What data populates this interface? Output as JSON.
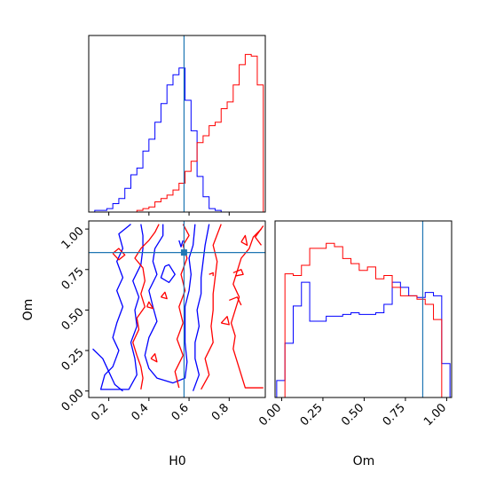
{
  "chart_data": {
    "type": "corner",
    "parameters": [
      "H0",
      "Om"
    ],
    "truths": {
      "H0": 0.575,
      "Om": 0.855
    },
    "colors": {
      "blue": "#0000ff",
      "red": "#ff0000",
      "truth": "#1f77b4"
    },
    "xlabels": {
      "H0": "H0",
      "Om": "Om"
    },
    "ylabel": "Om",
    "ticks": {
      "H0_top": [
        "0.2",
        "0.4",
        "0.6",
        "0.8"
      ],
      "H0": [
        "0.2",
        "0.4",
        "0.6",
        "0.8"
      ],
      "Om_y": [
        "0.00",
        "0.25",
        "0.50",
        "0.75",
        "1.00"
      ],
      "Om_x": [
        "0.00",
        "0.25",
        "0.50",
        "0.75",
        "1.00"
      ]
    },
    "panels": [
      {
        "name": "H0 marginal histogram",
        "type": "histogram",
        "xlim": [
          0.1,
          0.98
        ],
        "bin_edges": [
          0.13,
          0.16,
          0.19,
          0.22,
          0.25,
          0.28,
          0.31,
          0.34,
          0.37,
          0.4,
          0.43,
          0.46,
          0.49,
          0.52,
          0.55,
          0.58,
          0.61,
          0.64,
          0.67,
          0.7,
          0.73,
          0.76,
          0.79,
          0.82,
          0.85,
          0.88,
          0.91,
          0.94,
          0.97
        ],
        "series": [
          {
            "color": "blue",
            "values": [
              0.01,
              0.01,
              0.02,
              0.05,
              0.08,
              0.14,
              0.22,
              0.26,
              0.36,
              0.43,
              0.53,
              0.64,
              0.75,
              0.81,
              0.85,
              0.66,
              0.48,
              0.21,
              0.09,
              0.02,
              0.01,
              0,
              0,
              0,
              0,
              0,
              0,
              0
            ]
          },
          {
            "color": "red",
            "values": [
              0,
              0,
              0,
              0,
              0,
              0,
              0,
              0.01,
              0.02,
              0.03,
              0.06,
              0.08,
              0.1,
              0.13,
              0.17,
              0.24,
              0.3,
              0.41,
              0.45,
              0.51,
              0.53,
              0.61,
              0.65,
              0.75,
              0.87,
              0.93,
              0.92,
              0.75
            ]
          }
        ]
      },
      {
        "name": "Om marginal histogram",
        "type": "histogram",
        "xlim": [
          -0.04,
          1.03
        ],
        "bin_edges": [
          -0.03,
          0.02,
          0.07,
          0.12,
          0.17,
          0.22,
          0.27,
          0.32,
          0.37,
          0.42,
          0.47,
          0.52,
          0.57,
          0.62,
          0.67,
          0.72,
          0.77,
          0.82,
          0.87,
          0.92,
          0.97,
          1.02
        ],
        "series": [
          {
            "color": "blue",
            "values": [
              0.1,
              0.32,
              0.54,
              0.68,
              0.45,
              0.45,
              0.48,
              0.48,
              0.49,
              0.5,
              0.49,
              0.49,
              0.5,
              0.55,
              0.68,
              0.65,
              0.6,
              0.59,
              0.62,
              0.6,
              0.2
            ]
          },
          {
            "color": "red",
            "values": [
              0,
              0.73,
              0.72,
              0.78,
              0.88,
              0.88,
              0.91,
              0.89,
              0.82,
              0.79,
              0.75,
              0.77,
              0.7,
              0.72,
              0.65,
              0.6,
              0.6,
              0.58,
              0.55,
              0.46,
              0
            ]
          }
        ]
      },
      {
        "name": "H0 vs Om 2D contours",
        "type": "contour",
        "xlim": [
          0.1,
          0.98
        ],
        "ylim": [
          -0.04,
          1.05
        ],
        "contours": [
          {
            "color": "blue",
            "points": [
              [
                0.31,
                1.03
              ],
              [
                0.25,
                0.97
              ],
              [
                0.27,
                0.88
              ],
              [
                0.24,
                0.8
              ],
              [
                0.27,
                0.7
              ],
              [
                0.24,
                0.62
              ],
              [
                0.27,
                0.52
              ],
              [
                0.24,
                0.42
              ],
              [
                0.22,
                0.33
              ],
              [
                0.25,
                0.25
              ],
              [
                0.22,
                0.15
              ],
              [
                0.18,
                0.1
              ],
              [
                0.16,
                0.01
              ],
              [
                0.3,
                0.01
              ],
              [
                0.34,
                0.1
              ],
              [
                0.33,
                0.2
              ],
              [
                0.31,
                0.3
              ],
              [
                0.34,
                0.4
              ],
              [
                0.33,
                0.5
              ],
              [
                0.35,
                0.58
              ],
              [
                0.32,
                0.68
              ],
              [
                0.36,
                0.78
              ],
              [
                0.37,
                0.88
              ],
              [
                0.37,
                0.96
              ],
              [
                0.36,
                1.03
              ]
            ]
          },
          {
            "color": "blue",
            "points": [
              [
                0.12,
                0.26
              ],
              [
                0.17,
                0.2
              ],
              [
                0.2,
                0.12
              ],
              [
                0.23,
                0.04
              ],
              [
                0.27,
                0
              ]
            ]
          },
          {
            "color": "blue",
            "points": [
              [
                0.47,
                1.03
              ],
              [
                0.47,
                0.96
              ],
              [
                0.43,
                0.88
              ],
              [
                0.42,
                0.8
              ],
              [
                0.44,
                0.72
              ],
              [
                0.4,
                0.62
              ],
              [
                0.42,
                0.52
              ],
              [
                0.44,
                0.43
              ],
              [
                0.4,
                0.33
              ],
              [
                0.38,
                0.22
              ],
              [
                0.4,
                0.14
              ],
              [
                0.44,
                0.08
              ],
              [
                0.52,
                0.05
              ],
              [
                0.58,
                0.08
              ],
              [
                0.59,
                0.18
              ],
              [
                0.58,
                0.3
              ],
              [
                0.58,
                0.42
              ],
              [
                0.58,
                0.52
              ],
              [
                0.6,
                0.62
              ],
              [
                0.61,
                0.72
              ],
              [
                0.6,
                0.82
              ],
              [
                0.62,
                0.9
              ],
              [
                0.63,
                1.03
              ]
            ]
          },
          {
            "color": "blue",
            "points": [
              [
                0.62,
                0
              ],
              [
                0.65,
                0.1
              ],
              [
                0.63,
                0.2
              ],
              [
                0.63,
                0.3
              ],
              [
                0.65,
                0.4
              ],
              [
                0.64,
                0.5
              ],
              [
                0.66,
                0.6
              ],
              [
                0.66,
                0.7
              ],
              [
                0.67,
                0.8
              ],
              [
                0.68,
                0.9
              ],
              [
                0.7,
                1.03
              ]
            ]
          },
          {
            "color": "blue",
            "points": [
              [
                0.48,
                0.77
              ],
              [
                0.46,
                0.7
              ],
              [
                0.5,
                0.67
              ],
              [
                0.53,
                0.72
              ],
              [
                0.5,
                0.78
              ],
              [
                0.48,
                0.77
              ]
            ]
          },
          {
            "color": "blue",
            "points": [
              [
                0.55,
                0.93
              ],
              [
                0.56,
                0.89
              ],
              [
                0.57,
                0.93
              ]
            ]
          },
          {
            "color": "red",
            "points": [
              [
                0.45,
                1.03
              ],
              [
                0.43,
                0.98
              ],
              [
                0.4,
                0.93
              ],
              [
                0.36,
                0.88
              ],
              [
                0.33,
                0.82
              ],
              [
                0.37,
                0.76
              ],
              [
                0.38,
                0.68
              ],
              [
                0.36,
                0.6
              ],
              [
                0.38,
                0.52
              ],
              [
                0.34,
                0.45
              ],
              [
                0.35,
                0.38
              ],
              [
                0.32,
                0.3
              ],
              [
                0.34,
                0.22
              ],
              [
                0.36,
                0.15
              ],
              [
                0.37,
                0.08
              ],
              [
                0.36,
                0.01
              ]
            ]
          },
          {
            "color": "red",
            "points": [
              [
                0.57,
                1.03
              ],
              [
                0.6,
                0.96
              ],
              [
                0.57,
                0.9
              ],
              [
                0.59,
                0.82
              ],
              [
                0.56,
                0.72
              ],
              [
                0.58,
                0.62
              ],
              [
                0.55,
                0.52
              ],
              [
                0.57,
                0.42
              ],
              [
                0.54,
                0.32
              ],
              [
                0.57,
                0.22
              ],
              [
                0.53,
                0.12
              ],
              [
                0.55,
                0.02
              ]
            ]
          },
          {
            "color": "red",
            "points": [
              [
                0.66,
                0.01
              ],
              [
                0.7,
                0.1
              ],
              [
                0.68,
                0.2
              ],
              [
                0.72,
                0.3
              ],
              [
                0.71,
                0.4
              ],
              [
                0.72,
                0.5
              ],
              [
                0.72,
                0.6
              ],
              [
                0.73,
                0.7
              ],
              [
                0.74,
                0.8
              ],
              [
                0.72,
                0.9
              ],
              [
                0.76,
                1.03
              ]
            ]
          },
          {
            "color": "red",
            "points": [
              [
                0.96,
                1.0
              ],
              [
                0.92,
                0.95
              ],
              [
                0.9,
                0.88
              ],
              [
                0.86,
                0.82
              ],
              [
                0.84,
                0.74
              ],
              [
                0.82,
                0.66
              ],
              [
                0.85,
                0.58
              ],
              [
                0.83,
                0.5
              ],
              [
                0.81,
                0.42
              ],
              [
                0.83,
                0.34
              ],
              [
                0.82,
                0.26
              ],
              [
                0.84,
                0.18
              ],
              [
                0.86,
                0.1
              ],
              [
                0.88,
                0.02
              ],
              [
                0.97,
                0.02
              ]
            ]
          },
          {
            "color": "red",
            "points": [
              [
                0.96,
                0.9
              ],
              [
                0.93,
                0.95
              ],
              [
                0.97,
                1.02
              ]
            ]
          },
          {
            "color": "red",
            "points": [
              [
                0.86,
                0.92
              ],
              [
                0.88,
                0.96
              ],
              [
                0.89,
                0.9
              ],
              [
                0.86,
                0.92
              ]
            ]
          },
          {
            "color": "red",
            "points": [
              [
                0.82,
                0.73
              ],
              [
                0.86,
                0.75
              ],
              [
                0.87,
                0.72
              ],
              [
                0.83,
                0.71
              ]
            ]
          },
          {
            "color": "red",
            "points": [
              [
                0.8,
                0.56
              ],
              [
                0.84,
                0.58
              ],
              [
                0.86,
                0.53
              ]
            ]
          },
          {
            "color": "red",
            "points": [
              [
                0.76,
                0.42
              ],
              [
                0.79,
                0.46
              ],
              [
                0.8,
                0.41
              ],
              [
                0.76,
                0.42
              ]
            ]
          },
          {
            "color": "red",
            "points": [
              [
                0.22,
                0.85
              ],
              [
                0.25,
                0.81
              ],
              [
                0.28,
                0.84
              ],
              [
                0.25,
                0.88
              ],
              [
                0.22,
                0.85
              ]
            ]
          },
          {
            "color": "red",
            "points": [
              [
                0.39,
                0.52
              ],
              [
                0.4,
                0.55
              ],
              [
                0.42,
                0.51
              ],
              [
                0.39,
                0.52
              ]
            ]
          },
          {
            "color": "red",
            "points": [
              [
                0.46,
                0.58
              ],
              [
                0.48,
                0.61
              ],
              [
                0.49,
                0.57
              ],
              [
                0.46,
                0.58
              ]
            ]
          },
          {
            "color": "red",
            "points": [
              [
                0.7,
                0.72
              ],
              [
                0.72,
                0.73
              ],
              [
                0.72,
                0.71
              ]
            ]
          },
          {
            "color": "red",
            "points": [
              [
                0.41,
                0.2
              ],
              [
                0.43,
                0.23
              ],
              [
                0.44,
                0.18
              ],
              [
                0.41,
                0.2
              ]
            ]
          }
        ]
      }
    ]
  }
}
